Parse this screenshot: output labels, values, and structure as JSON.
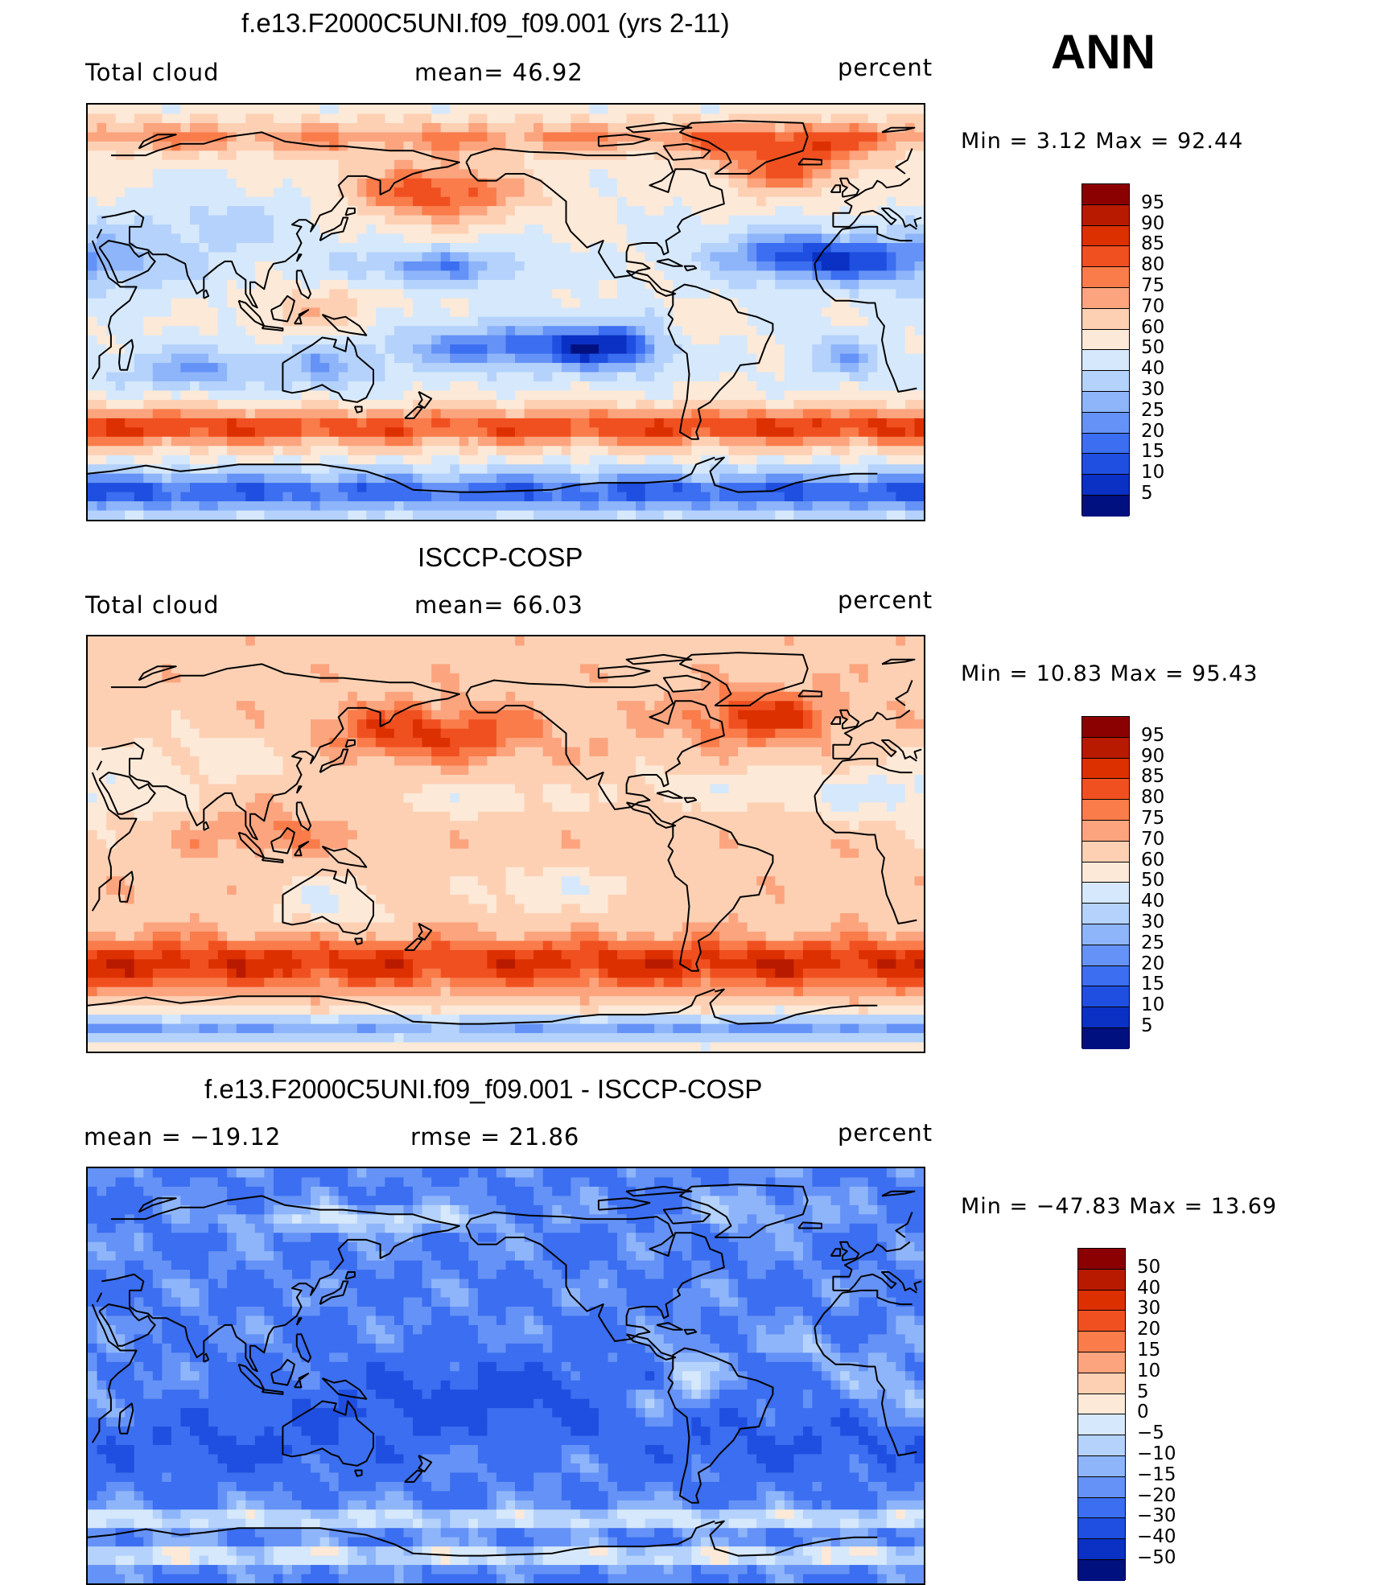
{
  "season": "ANN",
  "panels": [
    {
      "title": "f.e13.F2000C5UNI.f09_f09.001 (yrs 2-11)",
      "left_label": "Total cloud",
      "center_label": "mean=   46.92",
      "right_label": "percent",
      "minmax": "Min =    3.12  Max =    92.44",
      "regime": "model"
    },
    {
      "title": "ISCCP-COSP",
      "left_label": "Total cloud",
      "center_label": "mean=   66.03",
      "right_label": "percent",
      "minmax": "Min =   10.83  Max =    95.43",
      "regime": "obs"
    },
    {
      "title": "f.e13.F2000C5UNI.f09_f09.001 - ISCCP-COSP",
      "left_label": "mean  =  −19.12",
      "center_label": "rmse  =    21.86",
      "right_label": "percent",
      "minmax": "Min = −47.83  Max =    13.69",
      "regime": "diff"
    }
  ],
  "colorbars": {
    "abs": {
      "labels": [
        "95",
        "90",
        "85",
        "80",
        "75",
        "70",
        "60",
        "50",
        "40",
        "30",
        "25",
        "20",
        "15",
        "10",
        "5"
      ],
      "colors": [
        "#8b0000",
        "#b81a00",
        "#dd3000",
        "#f05020",
        "#f97c4a",
        "#fba47e",
        "#fdd0b4",
        "#fde9d8",
        "#d6e8fb",
        "#b4d2fb",
        "#8eb5fa",
        "#6592f6",
        "#3b6ef0",
        "#1f4fe0",
        "#0a30c4",
        "#00107e"
      ]
    },
    "diff": {
      "labels": [
        "50",
        "40",
        "30",
        "20",
        "15",
        "10",
        "5",
        "0",
        "−5",
        "−10",
        "−15",
        "−20",
        "−30",
        "−40",
        "−50"
      ],
      "colors": [
        "#8b0000",
        "#b81a00",
        "#dd3000",
        "#f05020",
        "#f97c4a",
        "#fba47e",
        "#fdd0b4",
        "#fde9d8",
        "#d6e8fb",
        "#b4d2fb",
        "#8eb5fa",
        "#6592f6",
        "#3b6ef0",
        "#1f4fe0",
        "#0a30c4",
        "#00107e"
      ]
    }
  }
}
